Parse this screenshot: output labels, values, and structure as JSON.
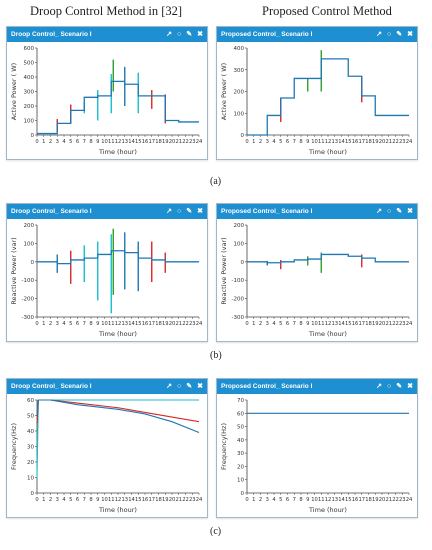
{
  "headers": {
    "left": "Droop Control Method in [32]",
    "right": "Proposed Control Method"
  },
  "captions": [
    "(a)",
    "(b)",
    "(c)"
  ],
  "icons": [
    "external-link-icon",
    "comment-icon",
    "pencil-icon",
    "close-icon"
  ],
  "colors": {
    "header_bar": "#1e8fd0",
    "series_blue": "#1f77b4",
    "series_cyan": "#17becf",
    "series_red": "#d62728",
    "series_green": "#2ca02c"
  },
  "chart_data": [
    {
      "type": "line",
      "panel_title": "Droop Control_ Scenario I",
      "xlabel": "Time (hour)",
      "ylabel": "Active Power ( W)",
      "xlim": [
        0,
        24
      ],
      "ylim": [
        0,
        600
      ],
      "yticks": [
        0,
        100,
        200,
        300,
        400,
        500,
        600
      ],
      "xticks": [
        0,
        1,
        2,
        3,
        4,
        5,
        6,
        7,
        8,
        9,
        10,
        11,
        12,
        13,
        14,
        15,
        16,
        17,
        18,
        19,
        20,
        21,
        22,
        23,
        24
      ],
      "x": [
        0,
        3,
        3,
        5,
        5,
        7,
        7,
        9,
        9,
        11,
        11,
        13,
        13,
        15,
        15,
        17,
        17,
        19,
        19,
        21,
        21,
        24
      ],
      "y": [
        10,
        10,
        80,
        80,
        170,
        170,
        260,
        260,
        270,
        270,
        370,
        370,
        350,
        350,
        270,
        270,
        270,
        270,
        100,
        100,
        90,
        90
      ],
      "spikes": [
        {
          "x": 3,
          "low": 20,
          "high": 110,
          "color": "#d62728"
        },
        {
          "x": 5,
          "low": 80,
          "high": 210,
          "color": "#d62728"
        },
        {
          "x": 7,
          "low": 150,
          "high": 230,
          "color": "#17becf"
        },
        {
          "x": 9,
          "low": 100,
          "high": 310,
          "color": "#17becf"
        },
        {
          "x": 11,
          "low": 150,
          "high": 420,
          "color": "#17becf"
        },
        {
          "x": 11.3,
          "low": 300,
          "high": 520,
          "color": "#2ca02c"
        },
        {
          "x": 13,
          "low": 200,
          "high": 470,
          "color": "#1f77b4"
        },
        {
          "x": 15,
          "low": 150,
          "high": 430,
          "color": "#17becf"
        },
        {
          "x": 17,
          "low": 180,
          "high": 310,
          "color": "#d62728"
        },
        {
          "x": 19,
          "low": 80,
          "high": 280,
          "color": "#d62728"
        }
      ]
    },
    {
      "type": "line",
      "panel_title": "Proposed Control_ Scenario I",
      "xlabel": "Time (hour)",
      "ylabel": "Active Power ( W)",
      "xlim": [
        0,
        24
      ],
      "ylim": [
        0,
        400
      ],
      "yticks": [
        0,
        100,
        200,
        300,
        400
      ],
      "xticks": [
        0,
        1,
        2,
        3,
        4,
        5,
        6,
        7,
        8,
        9,
        10,
        11,
        12,
        13,
        14,
        15,
        16,
        17,
        18,
        19,
        20,
        21,
        22,
        23,
        24
      ],
      "x": [
        0,
        3,
        3,
        5,
        5,
        7,
        7,
        9,
        9,
        11,
        11,
        15,
        15,
        17,
        17,
        19,
        19,
        24
      ],
      "y": [
        0,
        0,
        90,
        90,
        170,
        170,
        260,
        260,
        260,
        260,
        350,
        350,
        270,
        270,
        180,
        180,
        90,
        90
      ],
      "spikes": [
        {
          "x": 5,
          "low": 60,
          "high": 170,
          "color": "#d62728"
        },
        {
          "x": 9,
          "low": 200,
          "high": 260,
          "color": "#2ca02c"
        },
        {
          "x": 11,
          "low": 200,
          "high": 390,
          "color": "#2ca02c"
        },
        {
          "x": 17,
          "low": 150,
          "high": 270,
          "color": "#d62728"
        }
      ]
    },
    {
      "type": "line",
      "panel_title": "Droop Control_ Scenario I",
      "xlabel": "Time (hour)",
      "ylabel": "Reactive Power (var)",
      "xlim": [
        0,
        24
      ],
      "ylim": [
        -300,
        200
      ],
      "yticks": [
        -300,
        -200,
        -100,
        0,
        100,
        200
      ],
      "xticks": [
        0,
        1,
        2,
        3,
        4,
        5,
        6,
        7,
        8,
        9,
        10,
        11,
        12,
        13,
        14,
        15,
        16,
        17,
        18,
        19,
        20,
        21,
        22,
        23,
        24
      ],
      "x": [
        0,
        3,
        3,
        5,
        5,
        7,
        7,
        9,
        9,
        11,
        11,
        13,
        13,
        15,
        15,
        17,
        17,
        19,
        19,
        21,
        21,
        24
      ],
      "y": [
        0,
        0,
        -10,
        -10,
        10,
        10,
        20,
        20,
        40,
        40,
        60,
        60,
        50,
        50,
        20,
        20,
        10,
        10,
        0,
        0,
        0,
        0
      ],
      "spikes": [
        {
          "x": 3,
          "low": -60,
          "high": 40,
          "color": "#1f77b4"
        },
        {
          "x": 5,
          "low": -120,
          "high": 60,
          "color": "#d62728"
        },
        {
          "x": 7,
          "low": -110,
          "high": 90,
          "color": "#17becf"
        },
        {
          "x": 9,
          "low": -210,
          "high": 110,
          "color": "#17becf"
        },
        {
          "x": 11,
          "low": -280,
          "high": 150,
          "color": "#17becf"
        },
        {
          "x": 11.3,
          "low": -180,
          "high": 180,
          "color": "#2ca02c"
        },
        {
          "x": 13,
          "low": -150,
          "high": 160,
          "color": "#1f77b4"
        },
        {
          "x": 15,
          "low": -160,
          "high": 110,
          "color": "#1f77b4"
        },
        {
          "x": 17,
          "low": -110,
          "high": 110,
          "color": "#d62728"
        },
        {
          "x": 19,
          "low": -60,
          "high": 50,
          "color": "#d62728"
        }
      ]
    },
    {
      "type": "line",
      "panel_title": "Proposed Control_ Scenario I",
      "xlabel": "Time (hour)",
      "ylabel": "Reactive Power (var)",
      "xlim": [
        0,
        24
      ],
      "ylim": [
        -300,
        200
      ],
      "yticks": [
        -300,
        -200,
        -100,
        0,
        100,
        200
      ],
      "xticks": [
        0,
        1,
        2,
        3,
        4,
        5,
        6,
        7,
        8,
        9,
        10,
        11,
        12,
        13,
        14,
        15,
        16,
        17,
        18,
        19,
        20,
        21,
        22,
        23,
        24
      ],
      "x": [
        0,
        3,
        3,
        5,
        5,
        7,
        7,
        9,
        9,
        11,
        11,
        15,
        15,
        17,
        17,
        19,
        19,
        24
      ],
      "y": [
        0,
        0,
        -5,
        -5,
        0,
        0,
        10,
        10,
        15,
        15,
        40,
        40,
        30,
        30,
        20,
        20,
        0,
        0
      ],
      "spikes": [
        {
          "x": 3,
          "low": -20,
          "high": 5,
          "color": "#1f77b4"
        },
        {
          "x": 5,
          "low": -40,
          "high": 10,
          "color": "#d62728"
        },
        {
          "x": 9,
          "low": -20,
          "high": 30,
          "color": "#2ca02c"
        },
        {
          "x": 11,
          "low": -60,
          "high": 50,
          "color": "#2ca02c"
        },
        {
          "x": 17,
          "low": -30,
          "high": 40,
          "color": "#d62728"
        }
      ]
    },
    {
      "type": "line",
      "panel_title": "Droop Control_ Scenario I",
      "xlabel": "Time (hour)",
      "ylabel": "Frequency(Hz)",
      "xlim": [
        0,
        24
      ],
      "ylim": [
        0,
        60
      ],
      "yticks": [
        0,
        10,
        20,
        30,
        40,
        50,
        60
      ],
      "xticks": [
        0,
        1,
        2,
        3,
        4,
        5,
        6,
        7,
        8,
        9,
        10,
        11,
        12,
        13,
        14,
        15,
        16,
        17,
        18,
        19,
        20,
        21,
        22,
        23,
        24
      ],
      "series": [
        {
          "color": "#17becf",
          "x": [
            0,
            0.2,
            0.3,
            2,
            6,
            12,
            18,
            24
          ],
          "y": [
            10,
            60,
            60,
            60,
            60,
            60,
            60,
            60
          ]
        },
        {
          "color": "#d62728",
          "x": [
            0,
            0.2,
            2,
            6,
            12,
            16,
            20,
            24
          ],
          "y": [
            45,
            60,
            60,
            58,
            55,
            52,
            49,
            46
          ]
        },
        {
          "color": "#1f77b4",
          "x": [
            0,
            0.2,
            2,
            6,
            12,
            16,
            20,
            24
          ],
          "y": [
            50,
            60,
            60,
            57,
            54,
            51,
            46,
            39
          ]
        }
      ]
    },
    {
      "type": "line",
      "panel_title": "Proposed Control_ Scenario I",
      "xlabel": "Time (hour)",
      "ylabel": "Frequency(Hz)",
      "xlim": [
        0,
        24
      ],
      "ylim": [
        0,
        70
      ],
      "yticks": [
        0,
        10,
        20,
        30,
        40,
        50,
        60,
        70
      ],
      "xticks": [
        0,
        1,
        2,
        3,
        4,
        5,
        6,
        7,
        8,
        9,
        10,
        11,
        12,
        13,
        14,
        15,
        16,
        17,
        18,
        19,
        20,
        21,
        22,
        23,
        24
      ],
      "series": [
        {
          "color": "#1f77b4",
          "x": [
            0,
            24
          ],
          "y": [
            60,
            60
          ]
        }
      ]
    }
  ]
}
